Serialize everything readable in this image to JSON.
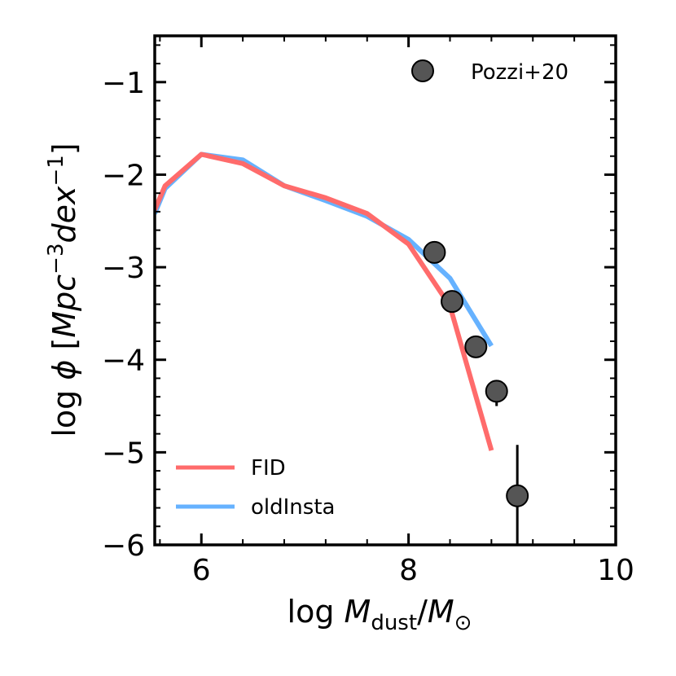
{
  "chart_data": {
    "type": "line",
    "title": "",
    "xlabel": {
      "prefix": "log ",
      "m": "M",
      "sub": "dust",
      "slash": "/",
      "m2": "M",
      "sub2": "⊙"
    },
    "ylabel": {
      "prefix": "log ",
      "phi": "ϕ",
      "open": " [",
      "units": "Mpc",
      "exp1": "−3",
      "dex": "dex",
      "exp2": "−1",
      "close": "]"
    },
    "xlim": [
      5.55,
      10.0
    ],
    "ylim": [
      -6.0,
      -0.5
    ],
    "xticks": [
      {
        "value": 6,
        "label": "6"
      },
      {
        "value": 8,
        "label": "8"
      },
      {
        "value": 10,
        "label": "10"
      }
    ],
    "yticks": [
      {
        "value": -1,
        "label": "−1"
      },
      {
        "value": -2,
        "label": "−2"
      },
      {
        "value": -3,
        "label": "−3"
      },
      {
        "value": -4,
        "label": "−4"
      },
      {
        "value": -5,
        "label": "−5"
      },
      {
        "value": -6,
        "label": "−6"
      }
    ],
    "series": [
      {
        "name": "FID",
        "color": "#ff6b6b",
        "x": [
          5.55,
          5.65,
          6.0,
          6.4,
          6.8,
          7.2,
          7.6,
          8.0,
          8.4,
          8.8
        ],
        "y": [
          -2.38,
          -2.12,
          -1.78,
          -1.88,
          -2.12,
          -2.25,
          -2.42,
          -2.75,
          -3.42,
          -4.98
        ]
      },
      {
        "name": "oldInsta",
        "color": "#66b2ff",
        "x": [
          5.55,
          5.65,
          6.0,
          6.4,
          6.8,
          7.2,
          7.6,
          8.0,
          8.4,
          8.8
        ],
        "y": [
          -2.42,
          -2.15,
          -1.78,
          -1.84,
          -2.12,
          -2.28,
          -2.45,
          -2.7,
          -3.12,
          -3.85
        ]
      }
    ],
    "observations": {
      "name": "Pozzi+20",
      "color": "#555555",
      "points": [
        {
          "x": 8.25,
          "y": -2.84,
          "yerr_low": 0.05,
          "yerr_high": 0.05
        },
        {
          "x": 8.42,
          "y": -3.37,
          "yerr_low": 0.05,
          "yerr_high": 0.05
        },
        {
          "x": 8.65,
          "y": -3.86,
          "yerr_low": 0.06,
          "yerr_high": 0.06
        },
        {
          "x": 8.85,
          "y": -4.34,
          "yerr_low": 0.16,
          "yerr_high": 0.06
        },
        {
          "x": 9.05,
          "y": -5.47,
          "yerr_low": 0.53,
          "yerr_high": 0.55
        }
      ],
      "legend_position": "top-right"
    },
    "legend_position": "lower-left",
    "grid": false
  }
}
